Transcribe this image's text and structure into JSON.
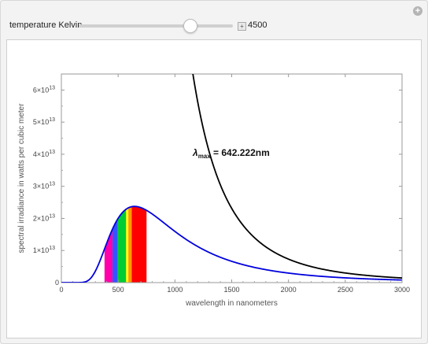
{
  "control": {
    "label": "temperature Kelvin",
    "value": "4500",
    "slider_fraction": 0.72
  },
  "chart_data": {
    "type": "line",
    "xlabel": "wavelength in nanometers",
    "ylabel": "spectral irradiance in watts per cubic meter",
    "xlim": [
      0,
      3000
    ],
    "ylim": [
      0,
      65000000000000.0
    ],
    "x_ticks": [
      "0",
      "500",
      "1000",
      "1500",
      "2000",
      "2500",
      "3000"
    ],
    "y_ticks": [
      {
        "mant": "0",
        "exp": ""
      },
      {
        "mant": "1×10",
        "exp": "13"
      },
      {
        "mant": "2×10",
        "exp": "13"
      },
      {
        "mant": "3×10",
        "exp": "13"
      },
      {
        "mant": "4×10",
        "exp": "13"
      },
      {
        "mant": "5×10",
        "exp": "13"
      },
      {
        "mant": "6×10",
        "exp": "13"
      }
    ],
    "temperature_K": 4500,
    "annotation": {
      "symbol": "λ",
      "sub": "max",
      "text": " = 642.222nm"
    },
    "series": [
      {
        "color": "#0000dd",
        "kind": "planck"
      },
      {
        "color": "#000000",
        "kind": "rayleigh-jeans"
      }
    ],
    "visible_bands": [
      {
        "from": 380,
        "to": 450,
        "color": "#ff00aa"
      },
      {
        "from": 450,
        "to": 495,
        "color": "#3355ff"
      },
      {
        "from": 495,
        "to": 570,
        "color": "#00cc33"
      },
      {
        "from": 570,
        "to": 590,
        "color": "#ffff00"
      },
      {
        "from": 590,
        "to": 620,
        "color": "#ff9900"
      },
      {
        "from": 620,
        "to": 750,
        "color": "#ff0000"
      }
    ]
  }
}
